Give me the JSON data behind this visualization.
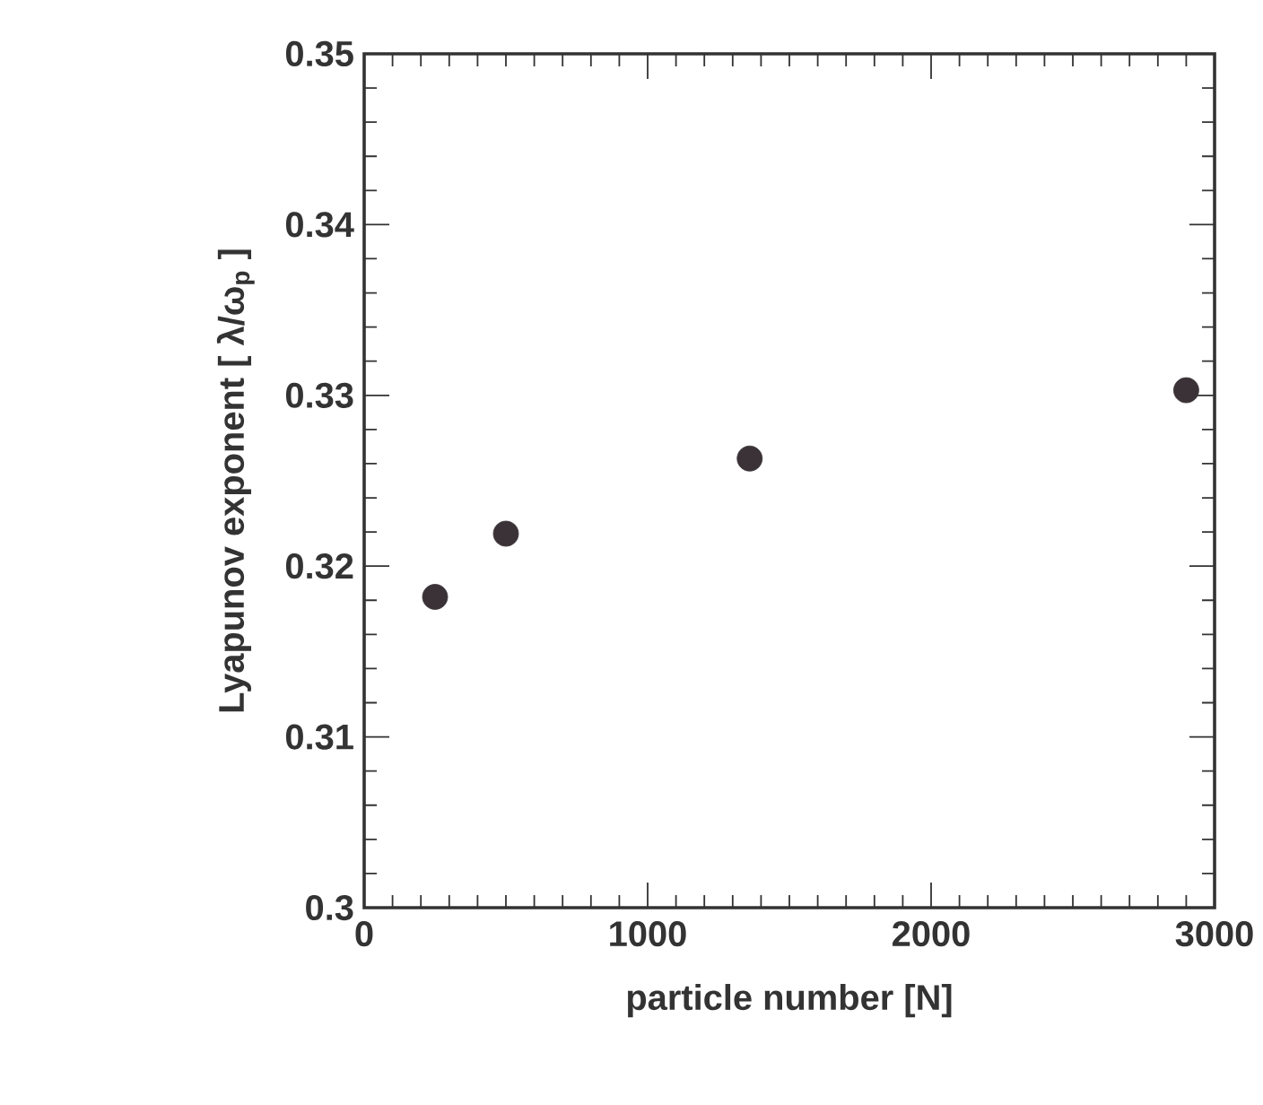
{
  "chart_data": {
    "type": "scatter",
    "xlabel": "particle number [N]",
    "ylabel": "Lyapunov exponent [ λ/ω$_{p}$ ]",
    "x": [
      250,
      500,
      1360,
      2900
    ],
    "values": [
      0.3182,
      0.3219,
      0.3263,
      0.3303
    ],
    "color": "#3a3236",
    "xlim": [
      0,
      3000
    ],
    "ylim": [
      0.3,
      0.35
    ],
    "xticks": [
      0,
      1000,
      2000,
      3000
    ],
    "yticks": [
      0.3,
      0.31,
      0.32,
      0.33,
      0.34,
      0.35
    ],
    "grid": false
  }
}
